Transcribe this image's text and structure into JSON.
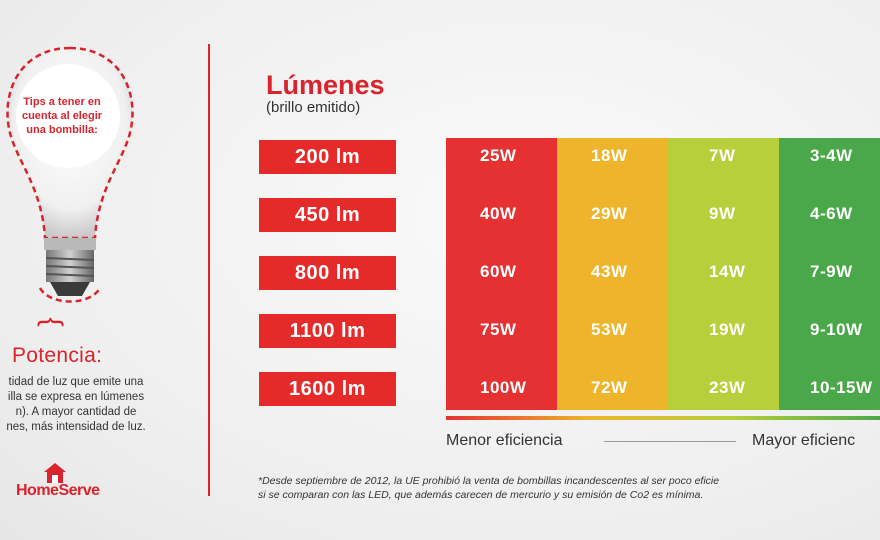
{
  "sidebar": {
    "tips_lines": [
      "Tips a tener en",
      "cuenta al elegir",
      "una bombilla:"
    ],
    "brace": "{",
    "potencia_title": "Potencia:",
    "potencia_lines": [
      "tidad de luz que emite una",
      "illa se expresa en lúmenes",
      "n). A mayor cantidad de",
      "nes, más intensidad de luz."
    ],
    "logo_text": "HomeServe"
  },
  "lumens_title": "Lúmenes",
  "lumens_subtitle": "(brillo emitido)",
  "colors": {
    "accent": "#d9232d",
    "label_bg": "#e52a2a",
    "col_red": "#e53131",
    "col_orange": "#eeb42c",
    "col_yellowgreen": "#b6cf3a",
    "col_green": "#4aa84a"
  },
  "chart_data": {
    "type": "table",
    "row_labels": [
      "200 lm",
      "450 lm",
      "800 lm",
      "1100 lm",
      "1600 lm"
    ],
    "columns": [
      {
        "values": [
          "25W",
          "40W",
          "60W",
          "75W",
          "100W"
        ]
      },
      {
        "values": [
          "18W",
          "29W",
          "43W",
          "53W",
          "72W"
        ]
      },
      {
        "values": [
          "7W",
          "9W",
          "14W",
          "19W",
          "23W"
        ]
      },
      {
        "values": [
          "3-4W",
          "4-6W",
          "7-9W",
          "9-10W",
          "10-15W"
        ]
      }
    ],
    "scale_left": "Menor eficiencia",
    "scale_right": "Mayor eficienc"
  },
  "footnote_lines": [
    "*Desde septiembre de 2012, la UE prohibió la venta de bombillas incandescentes al ser poco eficie",
    "si se comparan con las LED, que además carecen de mercurio y su emisión de Co2 es mínima."
  ]
}
